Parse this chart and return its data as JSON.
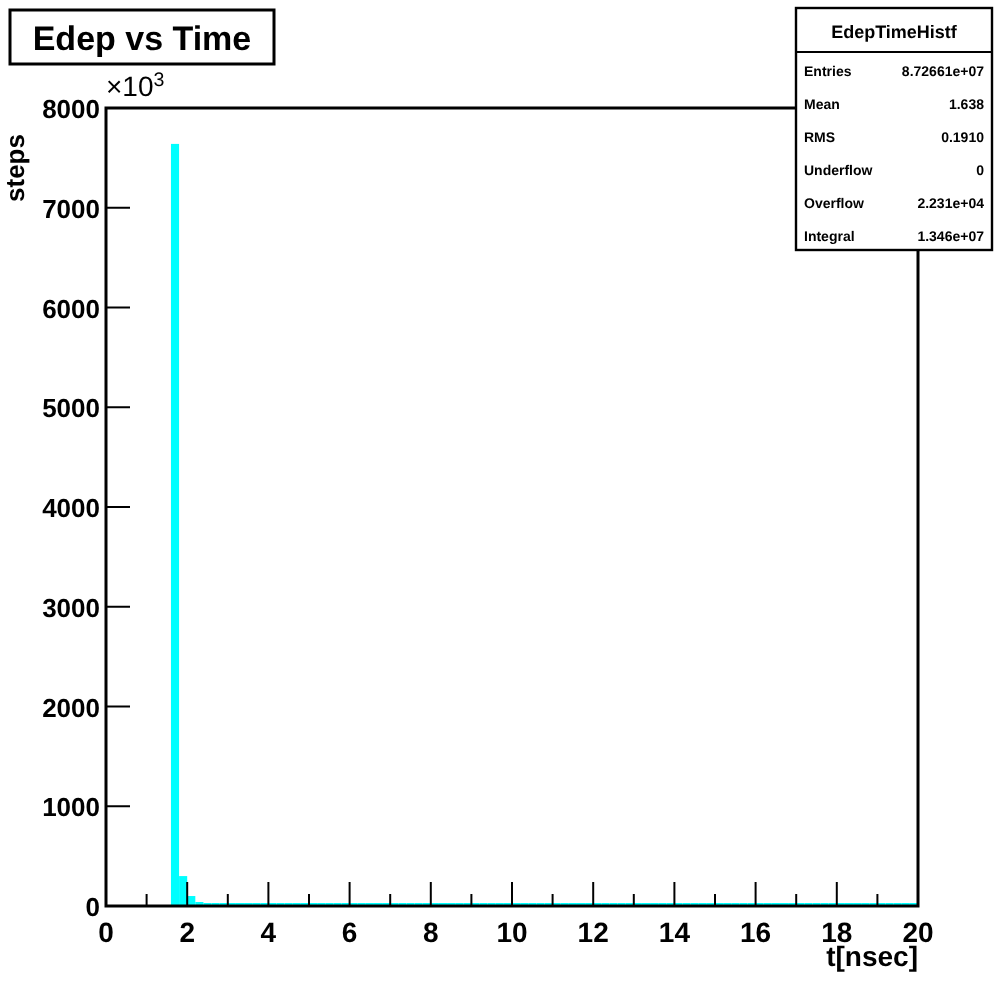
{
  "chart_data": {
    "type": "histogram",
    "title": "Edep vs Time",
    "xlabel": "t[nsec]",
    "ylabel": "steps",
    "color": "#00ffff",
    "annotations": [
      "×10$^{3}$",
      "EdepTimeHistf",
      "Entries 8.72661e+07",
      "Mean 1.638",
      "RMS 0.1910",
      "Underflow 0",
      "Overflow 2.231e+04",
      "Integral 1.346e+07"
    ],
    "xlim": [
      0,
      20
    ],
    "ylim": [
      0,
      8000
    ],
    "xticks": [
      0,
      {
        "value": 1,
        "label": null
      },
      2,
      {
        "value": 3,
        "label": null
      },
      4,
      {
        "value": 5,
        "label": null
      },
      6,
      {
        "value": 7,
        "label": null
      },
      8,
      {
        "value": 9,
        "label": null
      },
      10,
      {
        "value": 11,
        "label": null
      },
      12,
      {
        "value": 13,
        "label": null
      },
      14,
      {
        "value": 15,
        "label": null
      },
      16,
      {
        "value": 17,
        "label": null
      },
      18,
      {
        "value": 19,
        "label": null
      },
      20
    ],
    "yticks": [
      0,
      1000,
      2000,
      3000,
      4000,
      5000,
      6000,
      7000,
      8000
    ],
    "grid": false,
    "bins": [
      0,
      0.2,
      0.4,
      0.6,
      0.8,
      1,
      1.2,
      1.4,
      1.6,
      1.8,
      2,
      2.2,
      2.4,
      2.6,
      2.8,
      3,
      3.2,
      3.4,
      3.6,
      3.8,
      4,
      4.2,
      4.4,
      4.6,
      4.8,
      5,
      5.2,
      5.4,
      5.6,
      5.8,
      6,
      6.2,
      6.4,
      6.6,
      6.8,
      7,
      7.2,
      7.4,
      7.6,
      7.8,
      8,
      8.2,
      8.4,
      8.6,
      8.8,
      9,
      9.2,
      9.4,
      9.6,
      9.8,
      10,
      10.2,
      10.4,
      10.6,
      10.8,
      11,
      11.2,
      11.4,
      11.6,
      11.8,
      12,
      12.2,
      12.4,
      12.6,
      12.8,
      13,
      13.2,
      13.4,
      13.6,
      13.8,
      14,
      14.2,
      14.4,
      14.6,
      14.8,
      15,
      15.2,
      15.4,
      15.6,
      15.8,
      16,
      16.2,
      16.4,
      16.6,
      16.8,
      17,
      17.2,
      17.4,
      17.6,
      17.8,
      18,
      18.2,
      18.4,
      18.6,
      18.8,
      19,
      19.2,
      19.4,
      19.6,
      19.8,
      20
    ],
    "values": [
      0,
      0,
      0,
      0,
      0,
      0,
      0,
      0,
      7640,
      300,
      100,
      40,
      30,
      30,
      30,
      30,
      30,
      30,
      30,
      30,
      30,
      30,
      30,
      30,
      30,
      30,
      30,
      30,
      30,
      30,
      30,
      30,
      30,
      30,
      30,
      30,
      30,
      30,
      30,
      30,
      30,
      30,
      30,
      30,
      30,
      30,
      30,
      30,
      30,
      30,
      30,
      30,
      30,
      30,
      30,
      30,
      30,
      30,
      30,
      30,
      30,
      30,
      30,
      30,
      30,
      30,
      30,
      30,
      30,
      30,
      30,
      30,
      30,
      30,
      30,
      30,
      30,
      30,
      30,
      30,
      30,
      30,
      30,
      30,
      30,
      30,
      30,
      30,
      30,
      30,
      30,
      30,
      30,
      30,
      30,
      30,
      30,
      30,
      30,
      30
    ]
  }
}
